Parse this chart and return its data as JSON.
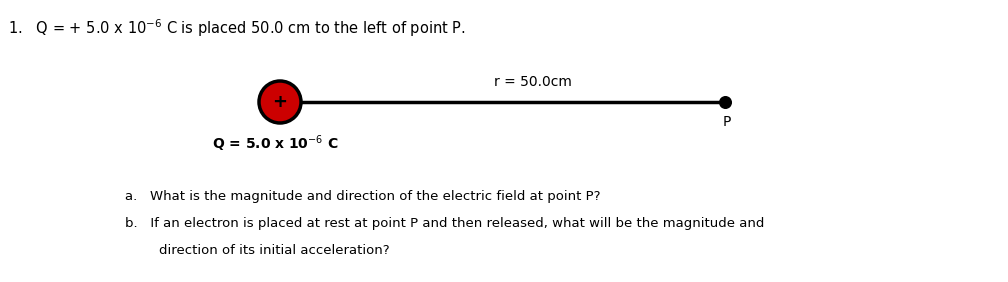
{
  "background_color": "#ffffff",
  "r_label": "r = 50.0cm",
  "point_label": "P",
  "question_a": "a.   What is the magnitude and direction of the electric field at point P?",
  "question_b1": "b.   If an electron is placed at rest at point P and then released, what will be the magnitude and",
  "question_b2": "        direction of its initial acceleration?",
  "charge_outer_color": "#cc0000",
  "charge_ring_color": "#000000",
  "line_color": "#000000",
  "line_lw": 2.5,
  "fig_width": 10.08,
  "fig_height": 2.82,
  "dpi": 100
}
